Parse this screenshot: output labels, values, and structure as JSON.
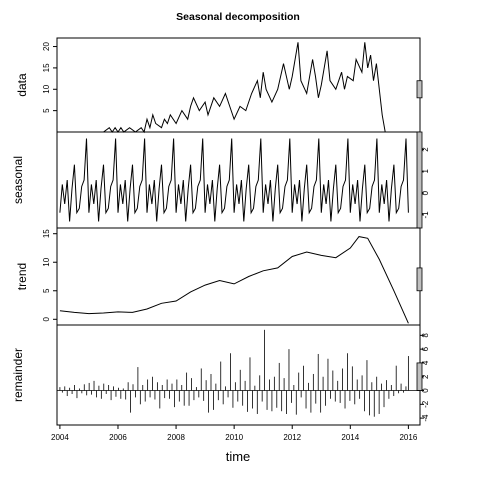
{
  "chart_data": {
    "type": "line",
    "title": "Seasonal decomposition",
    "xlabel": "time",
    "xlim": [
      2003.9,
      2016.4
    ],
    "xticks": [
      2004,
      2006,
      2008,
      2010,
      2012,
      2014,
      2016
    ],
    "panels": [
      {
        "name": "data",
        "kind": "line",
        "ylim": [
          0,
          22
        ],
        "yticks": [
          5,
          10,
          15,
          20
        ],
        "range_bar": [
          8,
          12
        ],
        "points": [
          [
            2004.0,
            0
          ],
          [
            2005.5,
            0
          ],
          [
            2005.7,
            1
          ],
          [
            2005.8,
            0
          ],
          [
            2005.9,
            1
          ],
          [
            2006.0,
            0
          ],
          [
            2006.1,
            1
          ],
          [
            2006.2,
            0
          ],
          [
            2006.4,
            1
          ],
          [
            2006.6,
            0
          ],
          [
            2006.8,
            1
          ],
          [
            2006.9,
            0
          ],
          [
            2007.0,
            3
          ],
          [
            2007.1,
            1
          ],
          [
            2007.2,
            4
          ],
          [
            2007.3,
            2
          ],
          [
            2007.5,
            1
          ],
          [
            2007.6,
            3
          ],
          [
            2007.7,
            2
          ],
          [
            2007.8,
            4
          ],
          [
            2008.0,
            2
          ],
          [
            2008.2,
            5
          ],
          [
            2008.4,
            3
          ],
          [
            2008.5,
            6
          ],
          [
            2008.6,
            8
          ],
          [
            2008.8,
            5
          ],
          [
            2009.0,
            7
          ],
          [
            2009.1,
            4
          ],
          [
            2009.3,
            8
          ],
          [
            2009.5,
            6
          ],
          [
            2009.7,
            9
          ],
          [
            2009.9,
            5
          ],
          [
            2010.0,
            3
          ],
          [
            2010.2,
            6
          ],
          [
            2010.4,
            5
          ],
          [
            2010.6,
            9
          ],
          [
            2010.8,
            12
          ],
          [
            2010.9,
            8
          ],
          [
            2011.0,
            14
          ],
          [
            2011.1,
            10
          ],
          [
            2011.3,
            7
          ],
          [
            2011.5,
            10
          ],
          [
            2011.7,
            16
          ],
          [
            2011.9,
            10
          ],
          [
            2012.0,
            13
          ],
          [
            2012.2,
            21
          ],
          [
            2012.3,
            12
          ],
          [
            2012.5,
            9
          ],
          [
            2012.7,
            17
          ],
          [
            2012.8,
            13
          ],
          [
            2012.9,
            8
          ],
          [
            2013.0,
            11
          ],
          [
            2013.2,
            19
          ],
          [
            2013.3,
            12
          ],
          [
            2013.5,
            10
          ],
          [
            2013.7,
            14
          ],
          [
            2013.8,
            10
          ],
          [
            2013.9,
            13
          ],
          [
            2014.1,
            12
          ],
          [
            2014.2,
            17
          ],
          [
            2014.4,
            14
          ],
          [
            2014.5,
            21
          ],
          [
            2014.6,
            15
          ],
          [
            2014.7,
            18
          ],
          [
            2014.8,
            12
          ],
          [
            2014.9,
            16
          ],
          [
            2015.0,
            10
          ],
          [
            2015.1,
            4
          ],
          [
            2015.2,
            0
          ],
          [
            2016.0,
            0
          ]
        ]
      },
      {
        "name": "seasonal",
        "kind": "line",
        "ylim": [
          -1.6,
          2.8
        ],
        "yticks": [
          -1,
          0,
          1,
          2
        ],
        "range_bar": [
          -1.6,
          2.8
        ],
        "season": [
          -0.9,
          0.4,
          -0.5,
          0.6,
          -1.3,
          0.2,
          1.3,
          -0.9,
          -0.7,
          0.3,
          0.6,
          2.5
        ]
      },
      {
        "name": "trend",
        "kind": "line",
        "ylim": [
          -1,
          16
        ],
        "yticks": [
          0,
          5,
          10,
          15
        ],
        "range_bar": [
          5,
          9
        ],
        "points": [
          [
            2004.0,
            1.5
          ],
          [
            2004.5,
            1.2
          ],
          [
            2005.0,
            1.0
          ],
          [
            2005.5,
            1.1
          ],
          [
            2006.0,
            1.3
          ],
          [
            2006.5,
            1.2
          ],
          [
            2007.0,
            1.8
          ],
          [
            2007.5,
            2.8
          ],
          [
            2008.0,
            3.2
          ],
          [
            2008.5,
            4.8
          ],
          [
            2009.0,
            6.0
          ],
          [
            2009.5,
            6.8
          ],
          [
            2010.0,
            6.2
          ],
          [
            2010.5,
            7.5
          ],
          [
            2011.0,
            8.5
          ],
          [
            2011.5,
            9.0
          ],
          [
            2012.0,
            11.0
          ],
          [
            2012.5,
            11.8
          ],
          [
            2013.0,
            11.2
          ],
          [
            2013.5,
            10.8
          ],
          [
            2014.0,
            12.5
          ],
          [
            2014.3,
            14.5
          ],
          [
            2014.6,
            14.2
          ],
          [
            2015.0,
            10.5
          ],
          [
            2015.5,
            5.0
          ],
          [
            2016.0,
            -0.7
          ]
        ]
      },
      {
        "name": "remainder",
        "kind": "bars",
        "ylim": [
          -5,
          9.5
        ],
        "yticks": [
          -4,
          -2,
          0,
          2,
          4,
          6,
          8
        ],
        "range_bar": [
          0,
          4
        ],
        "values": [
          0.5,
          -0.3,
          0.6,
          -0.8,
          0.4,
          -0.5,
          0.8,
          -1.1,
          0.3,
          -0.4,
          0.9,
          -0.7,
          1.1,
          -0.6,
          1.4,
          -1.0,
          0.7,
          -1.2,
          1.0,
          -0.5,
          0.8,
          -1.4,
          0.6,
          -0.9,
          0.4,
          -1.2,
          0.3,
          -1.3,
          1.2,
          -3.2,
          0.9,
          -1.0,
          3.4,
          -2.0,
          0.8,
          -1.6,
          1.6,
          -1.0,
          2.0,
          -1.3,
          1.2,
          -2.6,
          0.8,
          -1.1,
          1.6,
          -1.2,
          1.0,
          -2.4,
          1.6,
          -1.6,
          0.8,
          -2.2,
          2.6,
          -2.2,
          1.8,
          -1.4,
          0.5,
          -1.0,
          3.2,
          -1.5,
          1.5,
          -3.2,
          2.4,
          -2.8,
          1.0,
          -1.4,
          4.2,
          -2.0,
          0.6,
          -1.0,
          5.4,
          -2.5,
          1.2,
          -1.6,
          3.0,
          -2.2,
          1.4,
          -3.1,
          4.8,
          -2.6,
          0.7,
          -3.4,
          2.2,
          -1.6,
          8.8,
          -2.8,
          1.6,
          -3.0,
          2.0,
          -2.5,
          4.0,
          -3.0,
          1.8,
          -3.4,
          6.0,
          -1.8,
          0.8,
          -3.5,
          2.6,
          -1.0,
          3.6,
          -2.6,
          1.1,
          -3.2,
          2.4,
          -1.9,
          5.3,
          -3.2,
          2.0,
          -2.2,
          4.6,
          -1.2,
          2.9,
          -1.6,
          1.4,
          -1.8,
          3.2,
          -2.6,
          5.4,
          -1.5,
          3.5,
          -2.0,
          1.6,
          -1.2,
          2.2,
          -3.0,
          4.4,
          -3.6,
          1.2,
          -3.8,
          2.0,
          -3.4,
          1.0,
          -2.4,
          1.5,
          -1.2,
          0.8,
          -0.8,
          3.6,
          -0.4,
          1.0,
          -0.3,
          0.6,
          5.0
        ]
      }
    ]
  }
}
